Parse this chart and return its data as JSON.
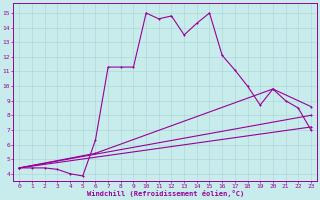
{
  "xlabel": "Windchill (Refroidissement éolien,°C)",
  "bg_color": "#c8ecec",
  "line_color": "#990099",
  "grid_color": "#b0d8d8",
  "xlim": [
    -0.5,
    23.5
  ],
  "ylim": [
    3.5,
    15.7
  ],
  "xticks": [
    0,
    1,
    2,
    3,
    4,
    5,
    6,
    7,
    8,
    9,
    10,
    11,
    12,
    13,
    14,
    15,
    16,
    17,
    18,
    19,
    20,
    21,
    22,
    23
  ],
  "yticks": [
    4,
    5,
    6,
    7,
    8,
    9,
    10,
    11,
    12,
    13,
    14,
    15
  ],
  "line1_x": [
    0,
    1,
    2,
    3,
    4,
    5,
    6,
    7,
    8,
    9,
    10,
    11,
    12,
    13,
    14,
    15,
    16,
    17,
    18,
    19,
    20,
    21,
    22,
    23
  ],
  "line1_y": [
    4.4,
    4.4,
    4.4,
    4.3,
    4.0,
    3.85,
    6.3,
    11.3,
    11.3,
    11.3,
    15.0,
    14.6,
    14.8,
    13.5,
    14.3,
    15.0,
    12.1,
    11.1,
    10.0,
    8.7,
    9.8,
    9.0,
    8.5,
    7.0
  ],
  "line2_x": [
    0,
    6,
    20,
    23
  ],
  "line2_y": [
    4.4,
    5.4,
    9.8,
    8.6
  ],
  "line3_x": [
    0,
    23
  ],
  "line3_y": [
    4.4,
    8.0
  ],
  "line4_x": [
    0,
    23
  ],
  "line4_y": [
    4.4,
    7.2
  ]
}
